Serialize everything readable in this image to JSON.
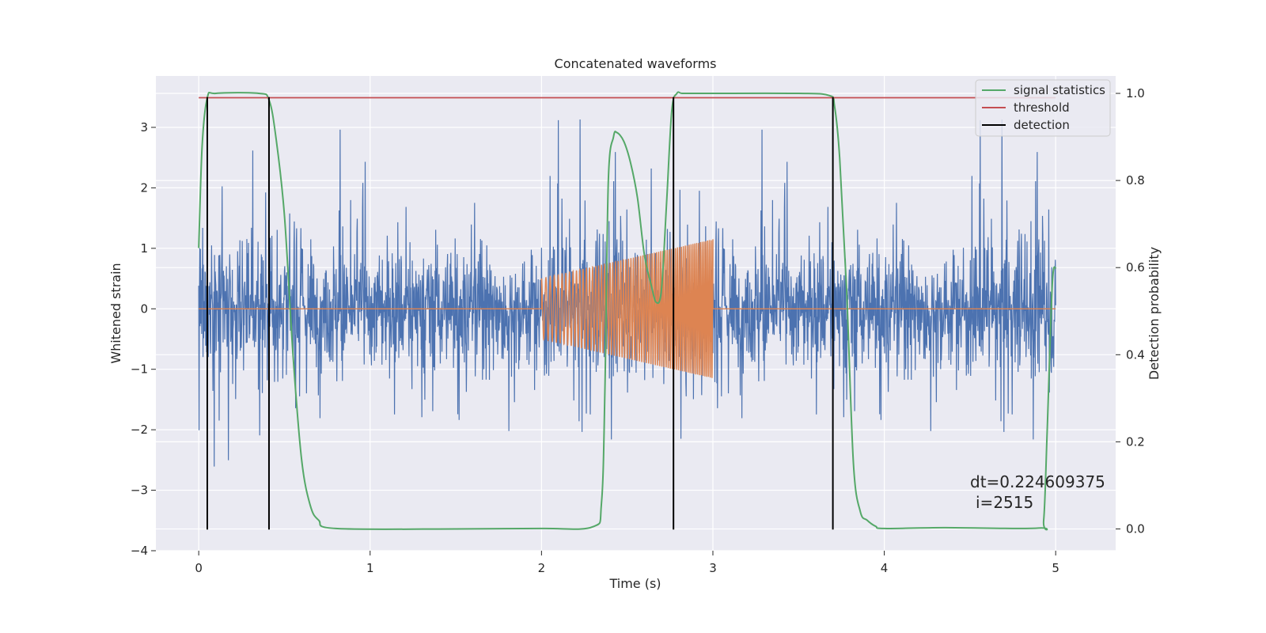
{
  "chart_data": {
    "type": "line",
    "title": "Concatenated waveforms",
    "xlabel": "Time (s)",
    "ylabel": "Whitened strain",
    "y2label": "Detection probability",
    "xlim": [
      -0.25,
      5.35
    ],
    "ylim": [
      -4.0,
      3.85
    ],
    "y2lim": [
      -0.05,
      1.04
    ],
    "xticks": [
      0,
      1,
      2,
      3,
      4,
      5
    ],
    "yticks": [
      -4,
      -3,
      -2,
      -1,
      0,
      1,
      2,
      3
    ],
    "y2ticks": [
      0.0,
      0.2,
      0.4,
      0.6,
      0.8,
      1.0
    ],
    "y2ticklabels": [
      "0.0",
      "0.2",
      "0.4",
      "0.6",
      "0.8",
      "1.0"
    ],
    "grid": true,
    "legend_position": "top-right",
    "colors": {
      "noise": "#4c72b0",
      "injected": "#dd8452",
      "signal_statistics": "#55a868",
      "threshold": "#c44e52",
      "detection": "#000000",
      "background": "#eaeaf2",
      "grid": "#ffffff"
    },
    "series": [
      {
        "name": "",
        "axis": "left",
        "kind": "noise",
        "x_range": [
          0,
          5
        ],
        "amplitude_core": 0.8,
        "amplitude_peak": 3.3
      },
      {
        "name": "",
        "axis": "left",
        "kind": "chirp",
        "x_range": [
          2.0,
          3.0
        ],
        "amplitude_start": 0.5,
        "amplitude_end": 1.15
      },
      {
        "name": "signal statistics",
        "axis": "right",
        "x": [
          0.0,
          0.02,
          0.05,
          0.1,
          0.35,
          0.41,
          0.45,
          0.5,
          0.55,
          0.6,
          0.65,
          0.7,
          0.8,
          1.5,
          2.0,
          2.3,
          2.35,
          2.37,
          2.39,
          2.42,
          2.44,
          2.48,
          2.52,
          2.56,
          2.6,
          2.64,
          2.67,
          2.7,
          2.73,
          2.76,
          2.79,
          2.82,
          2.9,
          3.5,
          3.68,
          3.71,
          3.74,
          3.78,
          3.82,
          3.86,
          3.9,
          3.95,
          4.0,
          4.35,
          4.9,
          4.93,
          4.95,
          4.98,
          5.0
        ],
        "values": [
          0.645,
          0.88,
          0.99,
          1.0,
          1.0,
          0.985,
          0.9,
          0.72,
          0.4,
          0.16,
          0.055,
          0.02,
          0.001,
          0.0,
          0.001,
          0.005,
          0.06,
          0.32,
          0.8,
          0.9,
          0.91,
          0.89,
          0.84,
          0.76,
          0.63,
          0.56,
          0.52,
          0.55,
          0.75,
          0.96,
          1.0,
          1.0,
          1.0,
          1.0,
          0.995,
          0.97,
          0.85,
          0.55,
          0.15,
          0.04,
          0.02,
          0.006,
          0.001,
          0.003,
          0.002,
          0.02,
          0.22,
          0.56,
          0.6
        ]
      },
      {
        "name": "threshold",
        "axis": "right",
        "x": [
          0,
          5
        ],
        "values": [
          0.99,
          0.99
        ]
      },
      {
        "name": "detection",
        "axis": "left",
        "kind": "vlines",
        "x": [
          0.05,
          0.41,
          2.77,
          3.7
        ],
        "y_range": [
          -3.65,
          3.5
        ]
      }
    ],
    "annotation": {
      "line1": "dt=0.224609375",
      "line2": "i=2515"
    }
  }
}
